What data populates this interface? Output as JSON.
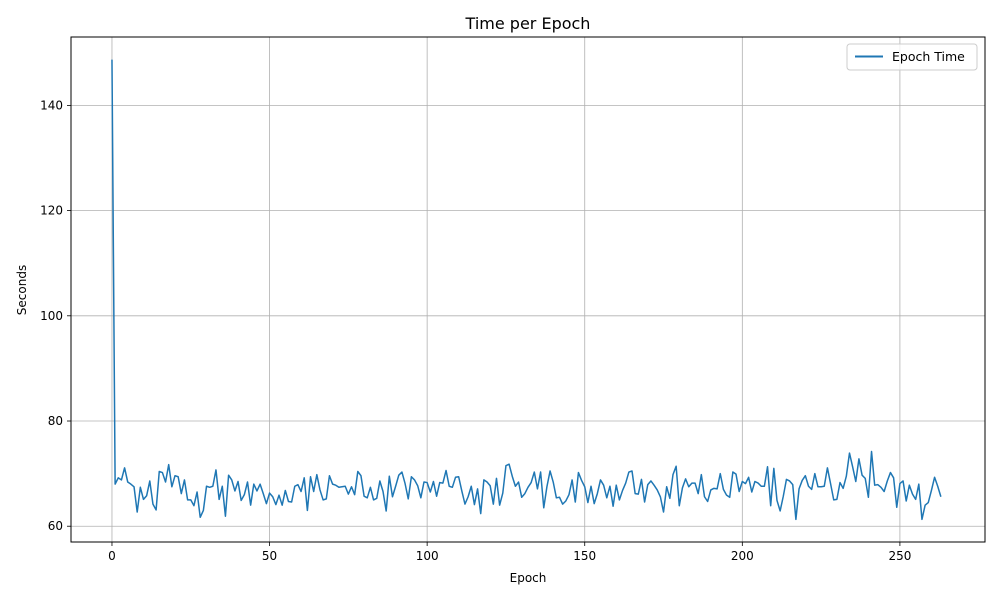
{
  "chart_data": {
    "type": "line",
    "title": "Time per Epoch",
    "xlabel": "Epoch",
    "ylabel": "Seconds",
    "xlim": [
      -13,
      277
    ],
    "ylim": [
      57,
      153
    ],
    "x_ticks": [
      0,
      50,
      100,
      150,
      200,
      250
    ],
    "y_ticks": [
      60,
      80,
      100,
      120,
      140
    ],
    "grid": true,
    "legend_position": "top-right",
    "series": [
      {
        "name": "Epoch Time",
        "color": "#1f77b4",
        "x_start": 0,
        "values": [
          148.7,
          68,
          69.2,
          68.8,
          71.1,
          68.4,
          68,
          67.5,
          62.7,
          67.4,
          65.1,
          65.8,
          68.6,
          64.2,
          63.1,
          70.4,
          70.2,
          68.4,
          71.7,
          67.5,
          69.6,
          69.4,
          66.2,
          68.8,
          65,
          65,
          63.9,
          66.5,
          61.7,
          63,
          67.6,
          67.4,
          67.6,
          70.7,
          65.1,
          67.6,
          61.9,
          69.7,
          68.8,
          66.7,
          68.5,
          64.9,
          66,
          68.4,
          64,
          68,
          66.7,
          68,
          66.2,
          64.3,
          66.3,
          65.6,
          64.1,
          65.9,
          64,
          66.8,
          64.7,
          64.6,
          67.6,
          67.9,
          66.6,
          69.2,
          63,
          69.4,
          66.6,
          69.8,
          66.9,
          65,
          65.2,
          69.6,
          68,
          67.8,
          67.4,
          67.5,
          67.6,
          66.1,
          67.5,
          66,
          70.4,
          69.6,
          65.7,
          65.4,
          67.4,
          65,
          65.3,
          68.6,
          66.6,
          62.9,
          69.5,
          65.6,
          67.6,
          69.7,
          70.3,
          68.1,
          65.2,
          69.4,
          68.8,
          67.7,
          65.4,
          68.4,
          68.3,
          66.5,
          68.5,
          65.7,
          68.3,
          68.2,
          70.6,
          67.6,
          67.4,
          69.3,
          69.4,
          66.7,
          64.2,
          65.6,
          67.6,
          64.1,
          67.1,
          62.4,
          68.8,
          68.4,
          67.7,
          64.2,
          69.1,
          64,
          66.3,
          71.5,
          71.8,
          69.5,
          67.6,
          68.4,
          65.5,
          66.2,
          67.4,
          68.3,
          70.3,
          67.1,
          70.3,
          63.5,
          67.5,
          70.5,
          68.4,
          65.4,
          65.5,
          64.2,
          64.8,
          66,
          68.8,
          64.6,
          70.2,
          68.7,
          67.5,
          64.5,
          67.6,
          64.3,
          66.2,
          68.8,
          67.8,
          65.4,
          67.6,
          63.8,
          67.8,
          65,
          66.8,
          68.2,
          70.3,
          70.5,
          66.2,
          66.1,
          68.9,
          64.6,
          67.9,
          68.6,
          67.8,
          66.9,
          65.6,
          62.7,
          67.5,
          65.3,
          69.8,
          71.4,
          63.9,
          67.3,
          69,
          67.5,
          68.2,
          68.2,
          66.2,
          69.8,
          65.6,
          64.7,
          66.9,
          67.2,
          67.1,
          70,
          67,
          65.9,
          65.5,
          70.3,
          69.9,
          66.6,
          68.5,
          68.1,
          69.3,
          66.5,
          68.5,
          68.2,
          67.6,
          67.6,
          71.3,
          63.9,
          71,
          64.9,
          62.9,
          65.7,
          68.9,
          68.6,
          67.9,
          61.3,
          67.1,
          68.7,
          69.6,
          67.6,
          67,
          70,
          67.5,
          67.5,
          67.6,
          71.1,
          68.1,
          65,
          65.1,
          68.3,
          67.2,
          69.5,
          73.9,
          71.3,
          68.5,
          72.8,
          69.7,
          69.1,
          65.5,
          74.2,
          67.8,
          67.9,
          67.4,
          66.6,
          68.6,
          70.2,
          69.2,
          63.6,
          68.1,
          68.6,
          64.8,
          67.8,
          66.1,
          65.1,
          68,
          61.3,
          64,
          64.5,
          66.8,
          69.3,
          67.6,
          65.6
        ]
      }
    ]
  }
}
